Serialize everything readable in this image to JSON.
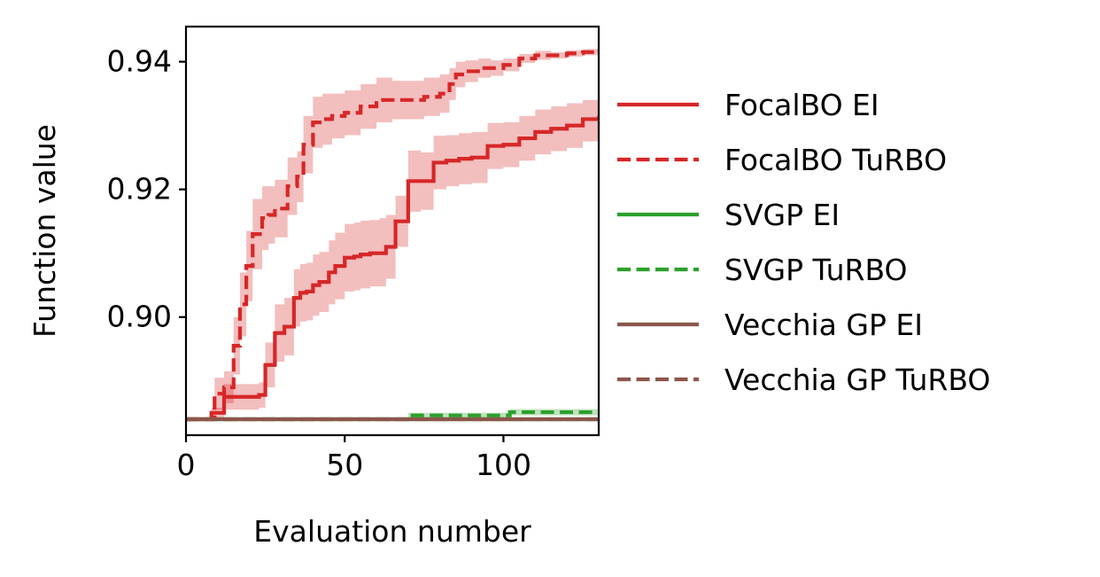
{
  "chart_data": {
    "type": "line",
    "title": "",
    "xlabel": "Evaluation number",
    "ylabel": "Function value",
    "xlim": [
      0,
      130
    ],
    "ylim": [
      0.8815,
      0.9455
    ],
    "xticks": [
      0,
      50,
      100
    ],
    "xtick_labels": [
      "0",
      "50",
      "100"
    ],
    "yticks": [
      0.9,
      0.92,
      0.94
    ],
    "ytick_labels": [
      "0.90",
      "0.92",
      "0.94"
    ],
    "grid": false,
    "legend_position": "outside-right",
    "series": [
      {
        "name": "FocalBO EI",
        "color": "#d62728",
        "style": "solid",
        "x": [
          0,
          7,
          8,
          12,
          17,
          23,
          25,
          28,
          31,
          34,
          36,
          38,
          40,
          42,
          45,
          47,
          50,
          53,
          55,
          58,
          61,
          63,
          66,
          70,
          74,
          78,
          82,
          86,
          90,
          95,
          100,
          105,
          110,
          115,
          120,
          125,
          130
        ],
        "y": [
          0.884,
          0.884,
          0.885,
          0.8875,
          0.8875,
          0.8878,
          0.8925,
          0.8975,
          0.8985,
          0.903,
          0.9038,
          0.904,
          0.905,
          0.9055,
          0.907,
          0.908,
          0.9093,
          0.9095,
          0.9098,
          0.91,
          0.91,
          0.911,
          0.915,
          0.9213,
          0.9213,
          0.9242,
          0.9245,
          0.9248,
          0.925,
          0.9268,
          0.927,
          0.928,
          0.929,
          0.9295,
          0.93,
          0.931,
          0.9315
        ],
        "band_lower": [
          0.884,
          0.884,
          0.8842,
          0.8855,
          0.8855,
          0.8858,
          0.889,
          0.893,
          0.894,
          0.8985,
          0.8993,
          0.8995,
          0.9002,
          0.9008,
          0.902,
          0.9028,
          0.904,
          0.9042,
          0.9045,
          0.9048,
          0.9048,
          0.906,
          0.911,
          0.9165,
          0.9168,
          0.92,
          0.9205,
          0.9208,
          0.921,
          0.9232,
          0.9235,
          0.9245,
          0.9255,
          0.926,
          0.9265,
          0.9275,
          0.928
        ],
        "band_upper": [
          0.884,
          0.884,
          0.8858,
          0.8895,
          0.8895,
          0.8898,
          0.896,
          0.902,
          0.903,
          0.9075,
          0.9083,
          0.9085,
          0.9098,
          0.9102,
          0.912,
          0.9132,
          0.9146,
          0.9148,
          0.9151,
          0.9152,
          0.9155,
          0.916,
          0.919,
          0.9261,
          0.9258,
          0.9284,
          0.9285,
          0.9288,
          0.929,
          0.9304,
          0.9305,
          0.9315,
          0.9325,
          0.933,
          0.9335,
          0.934,
          0.9345
        ]
      },
      {
        "name": "FocalBO TuRBO",
        "color": "#d62728",
        "style": "dashed",
        "x": [
          0,
          7,
          9,
          12,
          15,
          17,
          19,
          21,
          24,
          26,
          28,
          30,
          32,
          35,
          37,
          40,
          43,
          46,
          50,
          55,
          60,
          65,
          70,
          75,
          80,
          83,
          85,
          88,
          92,
          96,
          100,
          105,
          110,
          115,
          120,
          125,
          130
        ],
        "y": [
          0.884,
          0.884,
          0.888,
          0.889,
          0.8955,
          0.902,
          0.908,
          0.913,
          0.9155,
          0.916,
          0.917,
          0.917,
          0.9205,
          0.922,
          0.927,
          0.9305,
          0.931,
          0.9315,
          0.932,
          0.933,
          0.934,
          0.934,
          0.934,
          0.9345,
          0.935,
          0.9365,
          0.938,
          0.9385,
          0.939,
          0.939,
          0.9395,
          0.9405,
          0.941,
          0.941,
          0.9413,
          0.9415,
          0.9418
        ],
        "band_lower": [
          0.884,
          0.884,
          0.8855,
          0.8865,
          0.891,
          0.897,
          0.9025,
          0.9075,
          0.9105,
          0.9115,
          0.9125,
          0.9125,
          0.916,
          0.918,
          0.9225,
          0.9265,
          0.927,
          0.928,
          0.9285,
          0.9295,
          0.9305,
          0.931,
          0.931,
          0.9315,
          0.932,
          0.934,
          0.936,
          0.9368,
          0.9375,
          0.9378,
          0.9385,
          0.9398,
          0.9403,
          0.9405,
          0.9408,
          0.941,
          0.9413
        ],
        "band_upper": [
          0.884,
          0.884,
          0.8905,
          0.8915,
          0.9,
          0.907,
          0.9135,
          0.9185,
          0.9205,
          0.9205,
          0.9215,
          0.9215,
          0.925,
          0.926,
          0.9315,
          0.9345,
          0.935,
          0.935,
          0.9355,
          0.9365,
          0.9375,
          0.937,
          0.937,
          0.9375,
          0.938,
          0.939,
          0.94,
          0.9402,
          0.9405,
          0.9402,
          0.9405,
          0.9412,
          0.9417,
          0.9415,
          0.9418,
          0.942,
          0.9423
        ]
      },
      {
        "name": "SVGP EI",
        "color": "#2ca02c",
        "style": "solid",
        "x": [
          0,
          130
        ],
        "y": [
          0.884,
          0.884
        ]
      },
      {
        "name": "SVGP TuRBO",
        "color": "#2ca02c",
        "style": "dashed",
        "x": [
          0,
          68,
          70,
          100,
          102,
          130
        ],
        "y": [
          0.884,
          0.884,
          0.8846,
          0.8846,
          0.8851,
          0.8851
        ],
        "band_lower": [
          0.884,
          0.884,
          0.8842,
          0.8842,
          0.8846,
          0.8846
        ],
        "band_upper": [
          0.884,
          0.884,
          0.885,
          0.885,
          0.8856,
          0.8856
        ]
      },
      {
        "name": "Vecchia GP EI",
        "color": "#8c564b",
        "style": "solid",
        "x": [
          0,
          130
        ],
        "y": [
          0.884,
          0.884
        ]
      },
      {
        "name": "Vecchia GP TuRBO",
        "color": "#8c564b",
        "style": "dashed",
        "x": [
          0,
          130
        ],
        "y": [
          0.884,
          0.884
        ]
      }
    ]
  }
}
